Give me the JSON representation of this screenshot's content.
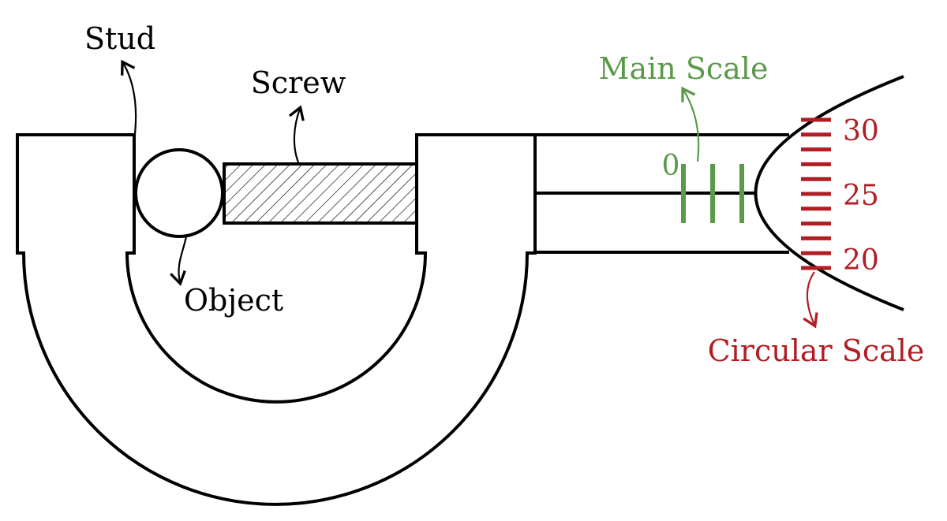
{
  "labels": {
    "stud": "Stud",
    "screw": "Screw",
    "object": "Object",
    "main_scale": "Main Scale",
    "circular_scale": "Circular Scale"
  },
  "main_scale": {
    "zero_label": "0",
    "color": "#5a9a4a"
  },
  "circular_scale": {
    "tick_labels": [
      "30",
      "25",
      "20"
    ],
    "color": "#b01e24"
  },
  "colors": {
    "outline": "#000000",
    "background": "#ffffff"
  }
}
